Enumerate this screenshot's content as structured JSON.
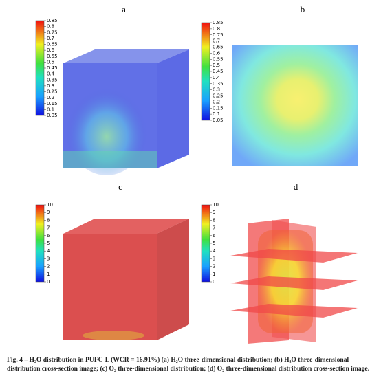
{
  "panels": [
    {
      "label": "a",
      "colorbar": {
        "ticks": [
          0.85,
          0.8,
          0.75,
          0.7,
          0.65,
          0.6,
          0.55,
          0.5,
          0.45,
          0.4,
          0.35,
          0.3,
          0.25,
          0.2,
          0.15,
          0.1,
          0.05
        ]
      }
    },
    {
      "label": "b",
      "colorbar": {
        "ticks": [
          0.85,
          0.8,
          0.75,
          0.7,
          0.65,
          0.6,
          0.55,
          0.5,
          0.45,
          0.4,
          0.35,
          0.3,
          0.25,
          0.2,
          0.15,
          0.1,
          0.05
        ]
      }
    },
    {
      "label": "c",
      "colorbar": {
        "ticks": [
          10,
          9,
          8,
          7,
          6,
          5,
          4,
          3,
          2,
          1,
          0
        ]
      }
    },
    {
      "label": "d",
      "colorbar": {
        "ticks": [
          10,
          9,
          8,
          7,
          6,
          5,
          4,
          3,
          2,
          1,
          0
        ]
      }
    }
  ],
  "caption": "Fig. 4 – H₂O distribution in PUFC-L (WCR = 16.91%) (a) H₂O three-dimensional distribution; (b) H₂O three-dimensional distribution cross-section image; (c) O₂ three-dimensional distribution; (d) O₂ three-dimensional distribution cross-section image."
}
